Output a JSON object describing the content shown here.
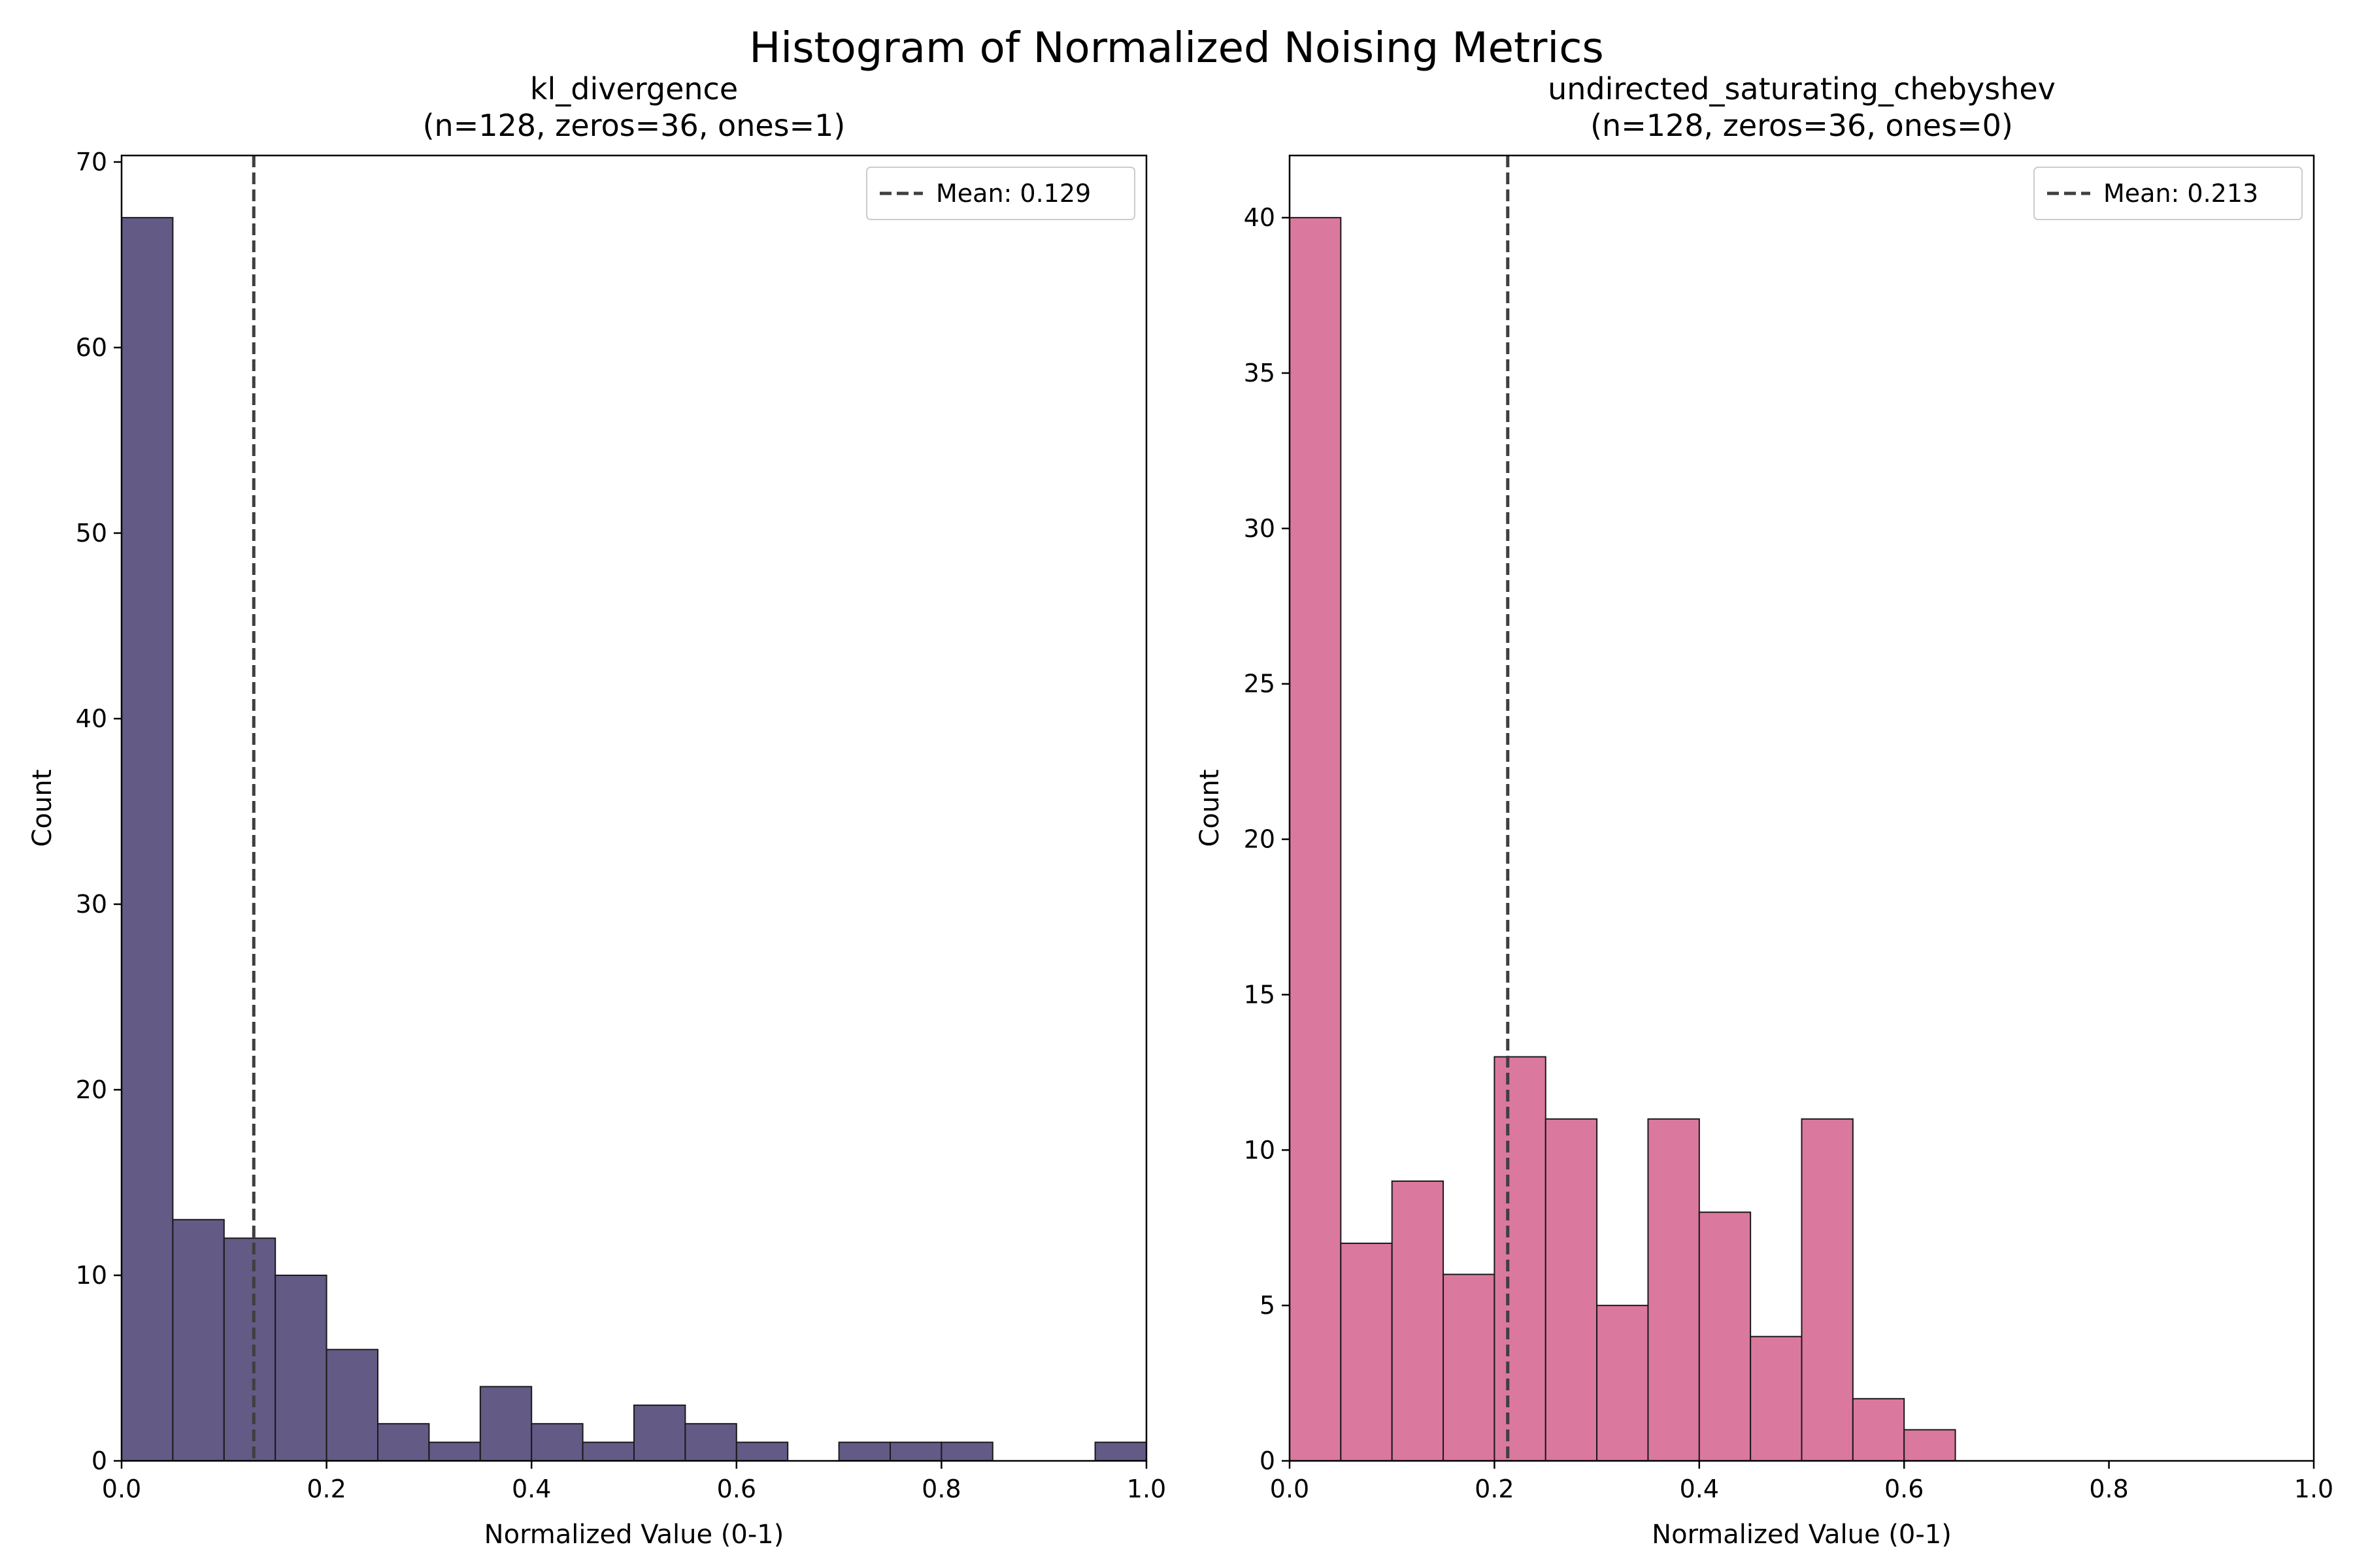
{
  "suptitle": "Histogram of Normalized Noising Metrics",
  "chart_data": [
    {
      "type": "bar",
      "title_line1": "kl_divergence",
      "title_line2": "(n=128, zeros=36, ones=1)",
      "xlabel": "Normalized Value (0-1)",
      "ylabel": "Count",
      "xlim": [
        0,
        1
      ],
      "ylim": [
        0,
        70.35
      ],
      "xticks": [
        "0.0",
        "0.2",
        "0.4",
        "0.6",
        "0.8",
        "1.0"
      ],
      "yticks": [
        "0",
        "10",
        "20",
        "30",
        "40",
        "50",
        "60",
        "70"
      ],
      "bin_width": 0.05,
      "bin_starts": [
        0.0,
        0.05,
        0.1,
        0.15,
        0.2,
        0.25,
        0.3,
        0.35,
        0.4,
        0.45,
        0.5,
        0.55,
        0.6,
        0.65,
        0.7,
        0.75,
        0.8,
        0.85,
        0.9,
        0.95
      ],
      "values": [
        67,
        13,
        12,
        10,
        6,
        2,
        1,
        4,
        2,
        1,
        3,
        2,
        1,
        0,
        1,
        1,
        1,
        0,
        0,
        1
      ],
      "mean": 0.129,
      "legend_label": "Mean: 0.129",
      "legend_position": "upper right",
      "bar_color": "#645a86",
      "grid": false
    },
    {
      "type": "bar",
      "title_line1": "undirected_saturating_chebyshev",
      "title_line2": "(n=128, zeros=36, ones=0)",
      "xlabel": "Normalized Value (0-1)",
      "ylabel": "Count",
      "xlim": [
        0,
        1
      ],
      "ylim": [
        0,
        42
      ],
      "xticks": [
        "0.0",
        "0.2",
        "0.4",
        "0.6",
        "0.8",
        "1.0"
      ],
      "yticks": [
        "0",
        "5",
        "10",
        "15",
        "20",
        "25",
        "30",
        "35",
        "40"
      ],
      "bin_width": 0.05,
      "bin_starts": [
        0.0,
        0.05,
        0.1,
        0.15,
        0.2,
        0.25,
        0.3,
        0.35,
        0.4,
        0.45,
        0.5,
        0.55,
        0.6
      ],
      "values": [
        40,
        7,
        9,
        6,
        13,
        11,
        5,
        11,
        8,
        4,
        11,
        2,
        1
      ],
      "mean": 0.213,
      "legend_label": "Mean: 0.213",
      "legend_position": "upper right",
      "bar_color": "#db789d",
      "grid": false
    }
  ]
}
